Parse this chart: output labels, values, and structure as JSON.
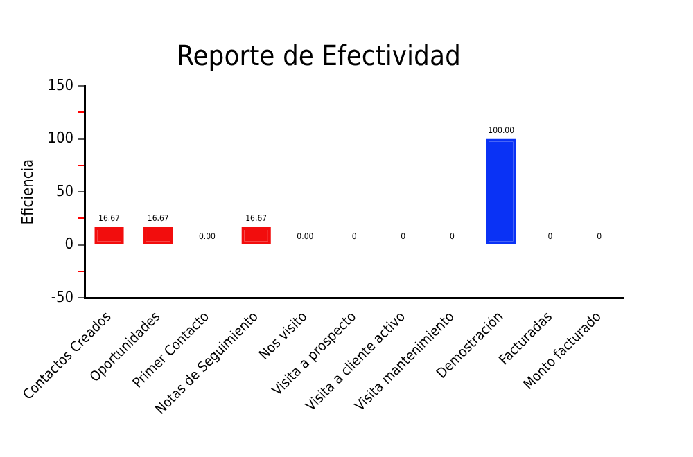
{
  "chart_data": {
    "type": "bar",
    "title": "Reporte de Efectividad",
    "ylabel": "Eficiencia",
    "categories": [
      "Contactos Creados",
      "Oportunidades",
      "Primer Contacto",
      "Notas de Seguimiento",
      "Nos visito",
      "Visita a prospecto",
      "Visita a cliente activo",
      "Visita mantenimiento",
      "Demostración",
      "Facturadas",
      "Monto facturado"
    ],
    "values": [
      16.67,
      16.67,
      0,
      16.67,
      0,
      0,
      0,
      0,
      100,
      0,
      0
    ],
    "value_labels": [
      "16.67",
      "16.67",
      "0.00",
      "16.67",
      "0.00",
      "0",
      "0",
      "0",
      "100.00",
      "0",
      "0"
    ],
    "colors": [
      "#f20d0d",
      "#f20d0d",
      "#f48080",
      "#f20d0d",
      "#f48080",
      "#f48080",
      "#f48080",
      "#f48080",
      "#0a32f5",
      "#f48080",
      "#f48080"
    ],
    "ylim": [
      -50,
      150
    ],
    "yticks": [
      -50,
      {
        "value": -25,
        "label": null
      },
      0,
      {
        "value": 25,
        "label": null
      },
      50,
      {
        "value": 75,
        "label": null
      },
      100,
      {
        "value": 125,
        "label": null
      },
      150
    ],
    "grid": false,
    "legend": false
  }
}
